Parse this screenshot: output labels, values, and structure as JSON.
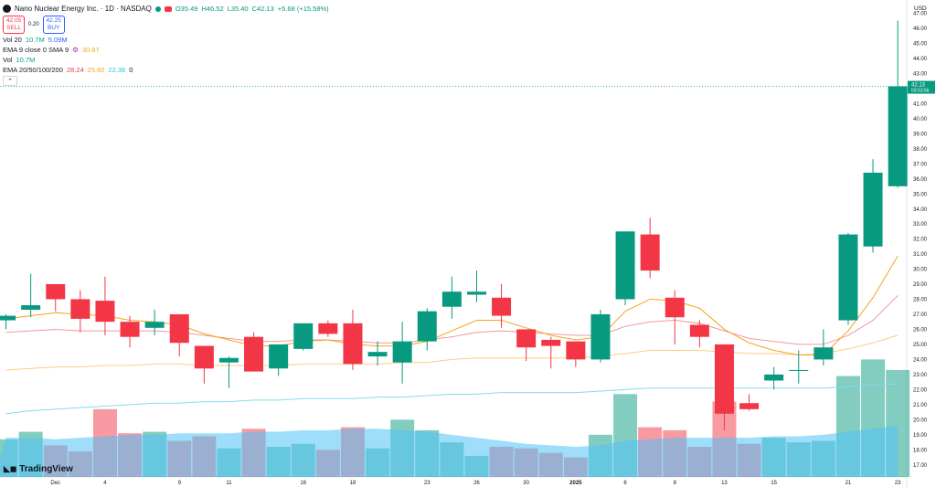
{
  "header": {
    "title": "Nano Nuclear Energy Inc. · 1D · NASDAQ",
    "ohlc": {
      "open": "O35.49",
      "high": "H46.52",
      "low": "L35.40",
      "close": "C42.13",
      "change": "+5.68 (+15.58%)"
    },
    "sell_price": "42.05",
    "sell_label": "SELL",
    "buy_price": "42.25",
    "buy_label": "BUY",
    "spread": "0.20"
  },
  "indicators": {
    "vol20": {
      "label": "Vol 20",
      "v1": "10.7M",
      "v2": "5.09M"
    },
    "ema9": {
      "label": "EMA 9 close 0 SMA 9",
      "value": "30.87"
    },
    "vol": {
      "label": "Vol",
      "value": "10.7M"
    },
    "ema_multi": {
      "label": "EMA 20/50/100/200",
      "v20": "28.24",
      "v50": "25.60",
      "v100": "22.38",
      "v200": "0"
    }
  },
  "branding": {
    "logo_text": "TradingView"
  },
  "colors": {
    "up": "#089981",
    "down": "#f23645",
    "ema9": "#f7a21b",
    "ema20": "#ef9a9a",
    "ema50": "#ffcc80",
    "ema100": "#80deea",
    "volume_area": "#4fc3f7",
    "price_line": "#089981"
  },
  "chart_data": {
    "type": "candlestick",
    "currency": "USD",
    "ylim": [
      16.2,
      47.5
    ],
    "y_ticks": [
      "47.00",
      "46.00",
      "45.00",
      "44.00",
      "43.00",
      "42.00",
      "41.00",
      "40.00",
      "39.00",
      "38.00",
      "37.00",
      "36.00",
      "35.00",
      "34.00",
      "33.00",
      "32.00",
      "31.00",
      "30.00",
      "29.00",
      "28.00",
      "27.00",
      "26.00",
      "25.00",
      "24.00",
      "23.00",
      "22.00",
      "21.00",
      "20.00",
      "19.00",
      "18.00",
      "17.00"
    ],
    "x_ticks": [
      {
        "i": 2,
        "label": "Dec"
      },
      {
        "i": 4,
        "label": "4"
      },
      {
        "i": 7,
        "label": "9"
      },
      {
        "i": 9,
        "label": "11"
      },
      {
        "i": 12,
        "label": "16"
      },
      {
        "i": 14,
        "label": "18"
      },
      {
        "i": 17,
        "label": "23"
      },
      {
        "i": 19,
        "label": "26"
      },
      {
        "i": 21,
        "label": "30"
      },
      {
        "i": 23,
        "label": "2025"
      },
      {
        "i": 25,
        "label": "6"
      },
      {
        "i": 27,
        "label": "8"
      },
      {
        "i": 29,
        "label": "13"
      },
      {
        "i": 31,
        "label": "15"
      },
      {
        "i": 34,
        "label": "21"
      },
      {
        "i": 36,
        "label": "23"
      }
    ],
    "last_price": {
      "value": "42.13",
      "countdown": "03:53:56"
    },
    "candles": [
      {
        "o": 26.6,
        "h": 27.0,
        "l": 26.0,
        "c": 26.9
      },
      {
        "o": 27.3,
        "h": 29.7,
        "l": 26.8,
        "c": 27.6
      },
      {
        "o": 29.0,
        "h": 29.0,
        "l": 27.2,
        "c": 28.0
      },
      {
        "o": 28.0,
        "h": 28.6,
        "l": 25.8,
        "c": 26.7
      },
      {
        "o": 27.9,
        "h": 29.5,
        "l": 25.6,
        "c": 26.5
      },
      {
        "o": 26.5,
        "h": 26.9,
        "l": 24.8,
        "c": 25.5
      },
      {
        "o": 26.1,
        "h": 27.3,
        "l": 25.6,
        "c": 26.5
      },
      {
        "o": 27.0,
        "h": 27.0,
        "l": 24.2,
        "c": 25.1
      },
      {
        "o": 24.9,
        "h": 24.9,
        "l": 22.4,
        "c": 23.4
      },
      {
        "o": 23.8,
        "h": 24.2,
        "l": 22.1,
        "c": 24.1
      },
      {
        "o": 25.5,
        "h": 25.8,
        "l": 23.2,
        "c": 23.2
      },
      {
        "o": 23.4,
        "h": 25.0,
        "l": 22.9,
        "c": 25.0
      },
      {
        "o": 24.7,
        "h": 26.4,
        "l": 24.6,
        "c": 26.4
      },
      {
        "o": 26.4,
        "h": 26.6,
        "l": 25.5,
        "c": 25.7
      },
      {
        "o": 26.4,
        "h": 27.3,
        "l": 23.3,
        "c": 23.7
      },
      {
        "o": 24.2,
        "h": 25.2,
        "l": 23.6,
        "c": 24.5
      },
      {
        "o": 23.8,
        "h": 26.5,
        "l": 22.4,
        "c": 25.2
      },
      {
        "o": 25.2,
        "h": 27.4,
        "l": 24.6,
        "c": 27.2
      },
      {
        "o": 27.5,
        "h": 29.5,
        "l": 26.7,
        "c": 28.5
      },
      {
        "o": 28.3,
        "h": 29.9,
        "l": 27.8,
        "c": 28.5
      },
      {
        "o": 28.1,
        "h": 29.0,
        "l": 26.1,
        "c": 26.9
      },
      {
        "o": 26.0,
        "h": 26.0,
        "l": 23.9,
        "c": 24.8
      },
      {
        "o": 25.3,
        "h": 25.5,
        "l": 23.4,
        "c": 24.9
      },
      {
        "o": 25.2,
        "h": 25.2,
        "l": 23.5,
        "c": 24.0
      },
      {
        "o": 24.0,
        "h": 27.3,
        "l": 23.8,
        "c": 27.0
      },
      {
        "o": 28.0,
        "h": 32.5,
        "l": 27.6,
        "c": 32.5
      },
      {
        "o": 32.3,
        "h": 33.4,
        "l": 29.4,
        "c": 29.9
      },
      {
        "o": 28.1,
        "h": 28.6,
        "l": 25.0,
        "c": 26.8
      },
      {
        "o": 26.3,
        "h": 26.6,
        "l": 24.8,
        "c": 25.5
      },
      {
        "o": 25.0,
        "h": 25.0,
        "l": 19.3,
        "c": 20.4
      },
      {
        "o": 21.1,
        "h": 21.7,
        "l": 20.6,
        "c": 20.7
      },
      {
        "o": 22.6,
        "h": 23.5,
        "l": 22.0,
        "c": 23.0
      },
      {
        "o": 23.3,
        "h": 24.6,
        "l": 22.4,
        "c": 23.3
      },
      {
        "o": 24.0,
        "h": 26.0,
        "l": 23.6,
        "c": 24.8
      },
      {
        "o": 26.6,
        "h": 32.4,
        "l": 26.3,
        "c": 32.3
      },
      {
        "o": 31.5,
        "h": 37.3,
        "l": 31.1,
        "c": 36.4
      },
      {
        "o": 35.5,
        "h": 46.5,
        "l": 35.4,
        "c": 42.13
      }
    ],
    "volume_max_y": 18.2,
    "volumes": [
      18.7,
      19.2,
      18.3,
      17.9,
      20.7,
      19.1,
      19.2,
      18.6,
      18.9,
      18.1,
      19.4,
      18.2,
      18.4,
      18.0,
      19.5,
      18.1,
      20.0,
      19.3,
      18.5,
      17.6,
      18.2,
      18.1,
      17.8,
      17.5,
      19.0,
      21.7,
      19.5,
      19.3,
      18.2,
      21.2,
      18.4,
      18.8,
      18.5,
      18.6,
      22.9,
      24.0,
      23.3
    ],
    "volume_ma": [
      18.8,
      18.8,
      18.7,
      18.8,
      18.9,
      19.0,
      19.0,
      19.1,
      19.1,
      19.1,
      19.2,
      19.2,
      19.3,
      19.3,
      19.4,
      19.4,
      19.3,
      19.2,
      19.0,
      18.8,
      18.6,
      18.4,
      18.3,
      18.2,
      18.3,
      18.6,
      18.7,
      18.8,
      18.8,
      18.8,
      18.8,
      18.9,
      18.9,
      19.0,
      19.2,
      19.4,
      19.6
    ],
    "ema9": [
      26.7,
      26.9,
      27.1,
      27.0,
      26.9,
      26.6,
      26.5,
      26.3,
      25.7,
      25.3,
      24.9,
      24.9,
      25.2,
      25.3,
      25.0,
      24.9,
      24.9,
      25.2,
      25.9,
      26.6,
      26.6,
      26.1,
      25.6,
      25.3,
      25.5,
      27.2,
      28.0,
      27.9,
      27.4,
      26.0,
      25.1,
      24.6,
      24.3,
      24.3,
      25.9,
      28.1,
      30.87
    ],
    "ema20": [
      25.8,
      25.9,
      26.0,
      25.9,
      25.9,
      25.9,
      25.9,
      25.8,
      25.6,
      25.4,
      25.2,
      25.2,
      25.3,
      25.3,
      25.2,
      25.1,
      25.1,
      25.3,
      25.5,
      25.8,
      25.9,
      25.8,
      25.7,
      25.6,
      25.6,
      26.2,
      26.5,
      26.6,
      26.4,
      25.9,
      25.4,
      25.2,
      25.0,
      25.0,
      25.6,
      26.6,
      28.24
    ],
    "ema50": [
      23.3,
      23.4,
      23.5,
      23.5,
      23.6,
      23.6,
      23.7,
      23.7,
      23.6,
      23.6,
      23.6,
      23.6,
      23.7,
      23.7,
      23.7,
      23.7,
      23.8,
      23.8,
      24.0,
      24.1,
      24.1,
      24.1,
      24.1,
      24.1,
      24.2,
      24.4,
      24.6,
      24.6,
      24.6,
      24.5,
      24.4,
      24.4,
      24.3,
      24.4,
      24.7,
      25.1,
      25.6
    ],
    "ema100": [
      20.4,
      20.6,
      20.7,
      20.8,
      20.9,
      21.0,
      21.1,
      21.1,
      21.2,
      21.2,
      21.3,
      21.3,
      21.4,
      21.4,
      21.4,
      21.5,
      21.5,
      21.6,
      21.7,
      21.7,
      21.8,
      21.8,
      21.8,
      21.8,
      21.9,
      22.0,
      22.1,
      22.1,
      22.1,
      22.1,
      22.1,
      22.1,
      22.1,
      22.1,
      22.2,
      22.3,
      22.38
    ]
  }
}
